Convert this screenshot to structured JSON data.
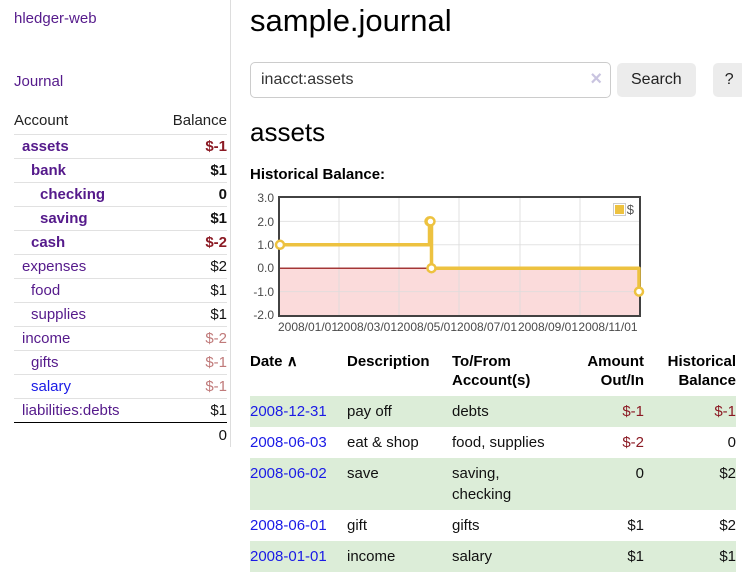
{
  "app": {
    "brand": "hledger-web",
    "nav_journal": "Journal",
    "journal_title": "sample.journal"
  },
  "search": {
    "value": "inacct:assets",
    "clear_icon": "×",
    "search_button": "Search",
    "help_button": "?"
  },
  "account_view": {
    "heading": "assets",
    "chart_title": "Historical Balance:"
  },
  "sidebar": {
    "account_header": "Account",
    "balance_header": "Balance",
    "accounts": [
      {
        "name": "assets",
        "depth": 0,
        "selected": true,
        "balance": "$-1",
        "negative": "strong"
      },
      {
        "name": "bank",
        "depth": 1,
        "selected": true,
        "balance": "$1",
        "negative": "none"
      },
      {
        "name": "checking",
        "depth": 2,
        "selected": true,
        "balance": "0",
        "negative": "none"
      },
      {
        "name": "saving",
        "depth": 2,
        "selected": true,
        "balance": "$1",
        "negative": "none"
      },
      {
        "name": "cash",
        "depth": 1,
        "selected": true,
        "balance": "$-2",
        "negative": "strong"
      },
      {
        "name": "expenses",
        "depth": 0,
        "selected": false,
        "balance": "$2",
        "negative": "none"
      },
      {
        "name": "food",
        "depth": 1,
        "selected": false,
        "balance": "$1",
        "negative": "none"
      },
      {
        "name": "supplies",
        "depth": 1,
        "selected": false,
        "balance": "$1",
        "negative": "none"
      },
      {
        "name": "income",
        "depth": 0,
        "selected": false,
        "balance": "$-2",
        "negative": "light"
      },
      {
        "name": "gifts",
        "depth": 1,
        "selected": false,
        "balance": "$-1",
        "negative": "light"
      },
      {
        "name": "salary",
        "depth": 1,
        "selected": false,
        "balance": "$-1",
        "negative": "light",
        "link_color": "blue"
      },
      {
        "name": "liabilities:debts",
        "depth": 0,
        "selected": false,
        "balance": "$1",
        "negative": "none",
        "total_separator": true
      }
    ],
    "total": "0"
  },
  "chart_data": {
    "type": "line",
    "step": true,
    "title": "Historical Balance:",
    "series": [
      {
        "name": "$",
        "color": "#edc240",
        "points": [
          [
            "2008-01-01",
            1
          ],
          [
            "2008-06-01",
            2
          ],
          [
            "2008-06-02",
            2
          ],
          [
            "2008-06-03",
            0
          ],
          [
            "2008-12-31",
            -1
          ]
        ]
      }
    ],
    "xlim": [
      "2008-01-01",
      "2008-12-31"
    ],
    "ylim": [
      -2,
      3
    ],
    "x_tick_labels": [
      "2008/01/01",
      "2008/03/01",
      "2008/05/01",
      "2008/07/01",
      "2008/09/01",
      "2008/11/01"
    ],
    "y_tick_labels": [
      "3.0",
      "2.0",
      "1.0",
      "0.0",
      "-1.0",
      "-2.0"
    ],
    "legend": {
      "label": "$",
      "position": "top-right"
    },
    "grid": true,
    "negative_region_color": "#fbdbdb",
    "zero_line_color": "#8b0000",
    "grid_color": "#dcdcdc",
    "border_color": "#424242"
  },
  "register": {
    "headers": {
      "date": "Date",
      "sort_icon": "∧",
      "description": "Description",
      "account_line1": "To/From",
      "account_line2": "Account(s)",
      "amount_line1": "Amount",
      "amount_line2": "Out/In",
      "balance_line1": "Historical",
      "balance_line2": "Balance"
    },
    "rows": [
      {
        "date": "2008-12-31",
        "description": "pay off",
        "accounts": "debts",
        "amount": "$-1",
        "amount_negative": true,
        "balance": "$-1",
        "balance_negative": true,
        "shaded": true
      },
      {
        "date": "2008-06-03",
        "description": "eat & shop",
        "accounts": "food, supplies",
        "amount": "$-2",
        "amount_negative": true,
        "balance": "0",
        "balance_negative": false,
        "shaded": false
      },
      {
        "date": "2008-06-02",
        "description": "save",
        "accounts": "saving, checking",
        "amount": "0",
        "amount_negative": false,
        "balance": "$2",
        "balance_negative": false,
        "shaded": true
      },
      {
        "date": "2008-06-01",
        "description": "gift",
        "accounts": "gifts",
        "amount": "$1",
        "amount_negative": false,
        "balance": "$2",
        "balance_negative": false,
        "shaded": false
      },
      {
        "date": "2008-01-01",
        "description": "income",
        "accounts": "salary",
        "amount": "$1",
        "amount_negative": false,
        "balance": "$1",
        "balance_negative": false,
        "shaded": true
      }
    ]
  },
  "colors": {
    "accent_purple": "#551a8b",
    "link_blue": "#1a1ae6",
    "negative_strong": "#8b1a24",
    "negative_light": "#c07a7a",
    "row_stripe_green": "#dcedd8",
    "series_gold": "#edc240"
  }
}
